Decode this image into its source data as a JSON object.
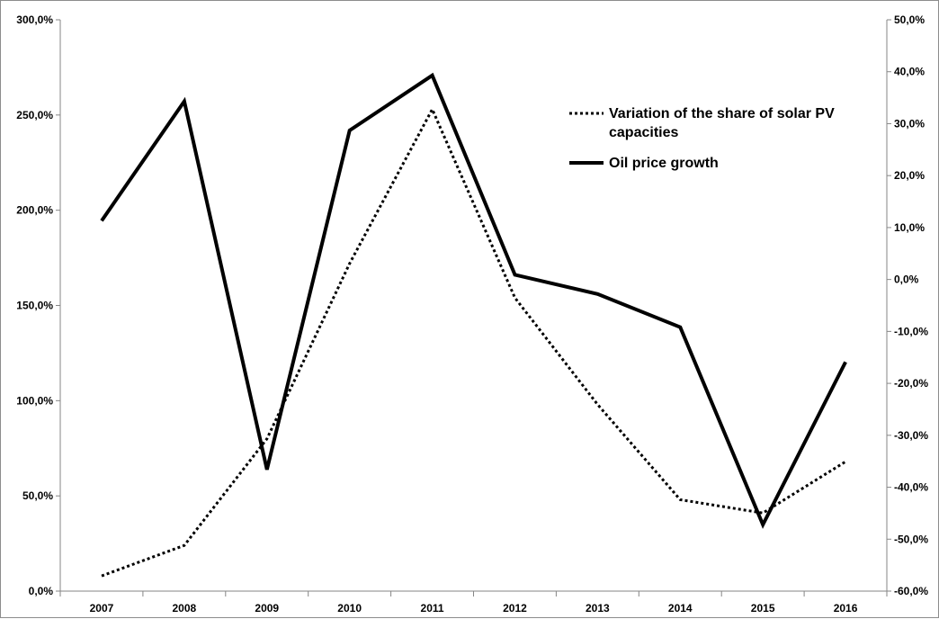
{
  "chart_data": {
    "type": "line",
    "categories": [
      "2007",
      "2008",
      "2009",
      "2010",
      "2011",
      "2012",
      "2013",
      "2014",
      "2015",
      "2016"
    ],
    "series": [
      {
        "name": "Variation of the share of solar PV capacities",
        "axis": "left",
        "style": "dotted",
        "values": [
          8,
          24,
          80,
          172,
          253,
          154,
          98,
          48,
          41,
          68
        ]
      },
      {
        "name": "Oil price growth",
        "axis": "right",
        "style": "solid",
        "values": [
          11.3,
          34.3,
          -36.6,
          28.7,
          39.3,
          0.9,
          -2.8,
          -9.2,
          -47.2,
          -15.9
        ]
      }
    ],
    "y_left": {
      "ylim": [
        0,
        300
      ],
      "ticks": [
        0,
        50,
        100,
        150,
        200,
        250,
        300
      ],
      "tick_labels": [
        "0,0%",
        "50,0%",
        "100,0%",
        "150,0%",
        "200,0%",
        "250,0%",
        "300,0%"
      ]
    },
    "y_right": {
      "ylim": [
        -60,
        50
      ],
      "ticks": [
        -60,
        -50,
        -40,
        -30,
        -20,
        -10,
        0,
        10,
        20,
        30,
        40,
        50
      ],
      "tick_labels": [
        "-60,0%",
        "-50,0%",
        "-40,0%",
        "-30,0%",
        "-20,0%",
        "-10,0%",
        "0,0%",
        "10,0%",
        "20,0%",
        "30,0%",
        "40,0%",
        "50,0%"
      ]
    },
    "grid": false,
    "legend_position": "top-right",
    "colors": {
      "line": "#000000",
      "axis": "#868686"
    }
  }
}
